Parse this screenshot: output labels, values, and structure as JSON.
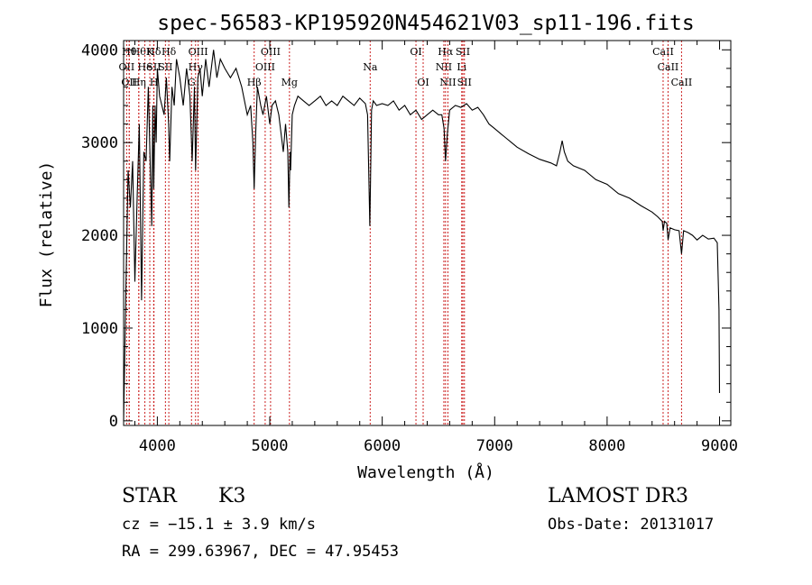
{
  "chart_data": {
    "type": "line",
    "title": "spec-56583-KP195920N454621V03_sp11-196.fits",
    "xlabel": "Wavelength (Å)",
    "ylabel": "Flux (relative)",
    "xlim": [
      3700,
      9100
    ],
    "ylim": [
      -50,
      4100
    ],
    "xticks": [
      4000,
      5000,
      6000,
      7000,
      8000,
      9000
    ],
    "yticks": [
      0,
      1000,
      2000,
      3000,
      4000
    ],
    "grid": false,
    "line_color": "#000000",
    "marker_color": "#cc2222",
    "series": [
      {
        "x": [
          3700,
          3720,
          3740,
          3760,
          3780,
          3800,
          3820,
          3840,
          3860,
          3880,
          3900,
          3920,
          3940,
          3950,
          3960,
          3968,
          3980,
          3990,
          4000,
          4020,
          4040,
          4060,
          4080,
          4100,
          4110,
          4130,
          4150,
          4170,
          4200,
          4230,
          4260,
          4290,
          4310,
          4330,
          4340,
          4360,
          4380,
          4400,
          4430,
          4460,
          4500,
          4530,
          4560,
          4600,
          4650,
          4700,
          4750,
          4800,
          4830,
          4850,
          4861,
          4875,
          4890,
          4920,
          4940,
          4970,
          5000,
          5020,
          5050,
          5080,
          5100,
          5120,
          5140,
          5160,
          5170,
          5180,
          5185,
          5200,
          5220,
          5250,
          5300,
          5350,
          5400,
          5450,
          5500,
          5550,
          5600,
          5650,
          5700,
          5750,
          5800,
          5850,
          5870,
          5885,
          5890,
          5896,
          5905,
          5920,
          5950,
          6000,
          6050,
          6100,
          6150,
          6200,
          6250,
          6300,
          6350,
          6400,
          6450,
          6500,
          6530,
          6550,
          6563,
          6580,
          6600,
          6650,
          6700,
          6750,
          6800,
          6850,
          6900,
          6950,
          7000,
          7050,
          7100,
          7150,
          7200,
          7300,
          7400,
          7500,
          7550,
          7580,
          7600,
          7620,
          7650,
          7700,
          7800,
          7900,
          8000,
          8100,
          8200,
          8300,
          8400,
          8450,
          8490,
          8498,
          8510,
          8530,
          8542,
          8560,
          8600,
          8640,
          8662,
          8680,
          8720,
          8760,
          8800,
          8850,
          8900,
          8950,
          8980,
          8995,
          9000
        ],
        "y": [
          0,
          1400,
          2700,
          2300,
          2800,
          1500,
          2400,
          3200,
          1300,
          2900,
          2800,
          3600,
          2600,
          2100,
          3400,
          2500,
          3400,
          3000,
          3800,
          3500,
          3400,
          3300,
          3700,
          3200,
          2800,
          3600,
          3400,
          3900,
          3700,
          3400,
          3800,
          3500,
          2800,
          3600,
          2700,
          3700,
          3800,
          3500,
          3900,
          3600,
          4000,
          3700,
          3900,
          3800,
          3700,
          3800,
          3600,
          3300,
          3400,
          3000,
          2500,
          3100,
          3600,
          3400,
          3300,
          3500,
          3200,
          3400,
          3450,
          3300,
          3100,
          2900,
          3200,
          2900,
          2300,
          2900,
          2700,
          3300,
          3400,
          3500,
          3450,
          3400,
          3450,
          3500,
          3400,
          3450,
          3400,
          3500,
          3450,
          3400,
          3480,
          3420,
          3300,
          2400,
          2100,
          2600,
          3350,
          3450,
          3400,
          3420,
          3400,
          3450,
          3350,
          3400,
          3300,
          3350,
          3250,
          3300,
          3350,
          3300,
          3300,
          3150,
          2800,
          3100,
          3350,
          3400,
          3380,
          3420,
          3350,
          3380,
          3300,
          3200,
          3150,
          3100,
          3050,
          3000,
          2950,
          2880,
          2820,
          2780,
          2750,
          2900,
          3020,
          2900,
          2800,
          2750,
          2700,
          2600,
          2550,
          2450,
          2400,
          2320,
          2250,
          2200,
          2150,
          2050,
          2150,
          2130,
          1950,
          2080,
          2060,
          2050,
          1800,
          2050,
          2030,
          2000,
          1950,
          2000,
          1960,
          1970,
          1920,
          1200,
          300
        ]
      }
    ],
    "lines": [
      {
        "wave": 3750,
        "row": 1,
        "label": "Hθ"
      },
      {
        "wave": 3727,
        "row": 2,
        "label": "OII"
      },
      {
        "wave": 3750,
        "row": 3,
        "label": "OII"
      },
      {
        "wave": 3835,
        "row": 1,
        "label": "Hθ"
      },
      {
        "wave": 3889,
        "row": 2,
        "label": "He"
      },
      {
        "wave": 3835,
        "row": 3,
        "label": "Hη"
      },
      {
        "wave": 3933,
        "row": 1,
        "label": "K"
      },
      {
        "wave": 3968,
        "row": 1,
        "label": "Hδ"
      },
      {
        "wave": 3968,
        "row": 2,
        "label": "SII"
      },
      {
        "wave": 3970,
        "row": 3,
        "label": "H"
      },
      {
        "wave": 4102,
        "row": 1,
        "label": "Hδ"
      },
      {
        "wave": 4072,
        "row": 2,
        "label": "SII"
      },
      {
        "wave": 4304,
        "row": 3,
        "label": "G"
      },
      {
        "wave": 4340,
        "row": 2,
        "label": "Hγ"
      },
      {
        "wave": 4363,
        "row": 1,
        "label": "OIII"
      },
      {
        "wave": 4861,
        "row": 3,
        "label": "Hβ"
      },
      {
        "wave": 4959,
        "row": 2,
        "label": "OIII"
      },
      {
        "wave": 5007,
        "row": 1,
        "label": "OIII"
      },
      {
        "wave": 5175,
        "row": 3,
        "label": "Mg"
      },
      {
        "wave": 5893,
        "row": 2,
        "label": "Na"
      },
      {
        "wave": 6300,
        "row": 1,
        "label": "OI"
      },
      {
        "wave": 6364,
        "row": 3,
        "label": "OI"
      },
      {
        "wave": 6548,
        "row": 2,
        "label": "NII"
      },
      {
        "wave": 6563,
        "row": 1,
        "label": "Hα"
      },
      {
        "wave": 6584,
        "row": 3,
        "label": "NII"
      },
      {
        "wave": 6707,
        "row": 2,
        "label": "Li"
      },
      {
        "wave": 6717,
        "row": 1,
        "label": "SII"
      },
      {
        "wave": 6731,
        "row": 3,
        "label": "SII"
      },
      {
        "wave": 8498,
        "row": 1,
        "label": "CaII"
      },
      {
        "wave": 8542,
        "row": 2,
        "label": "CaII"
      },
      {
        "wave": 8662,
        "row": 3,
        "label": "CaII"
      }
    ]
  },
  "info": {
    "object_class": "STAR",
    "subclass": "K3",
    "survey": "LAMOST DR3",
    "redshift_line": "cz = −15.1 ± 3.9 km/s",
    "obs_date": "Obs-Date: 20131017",
    "coords": "RA = 299.63967, DEC =  47.95453"
  }
}
